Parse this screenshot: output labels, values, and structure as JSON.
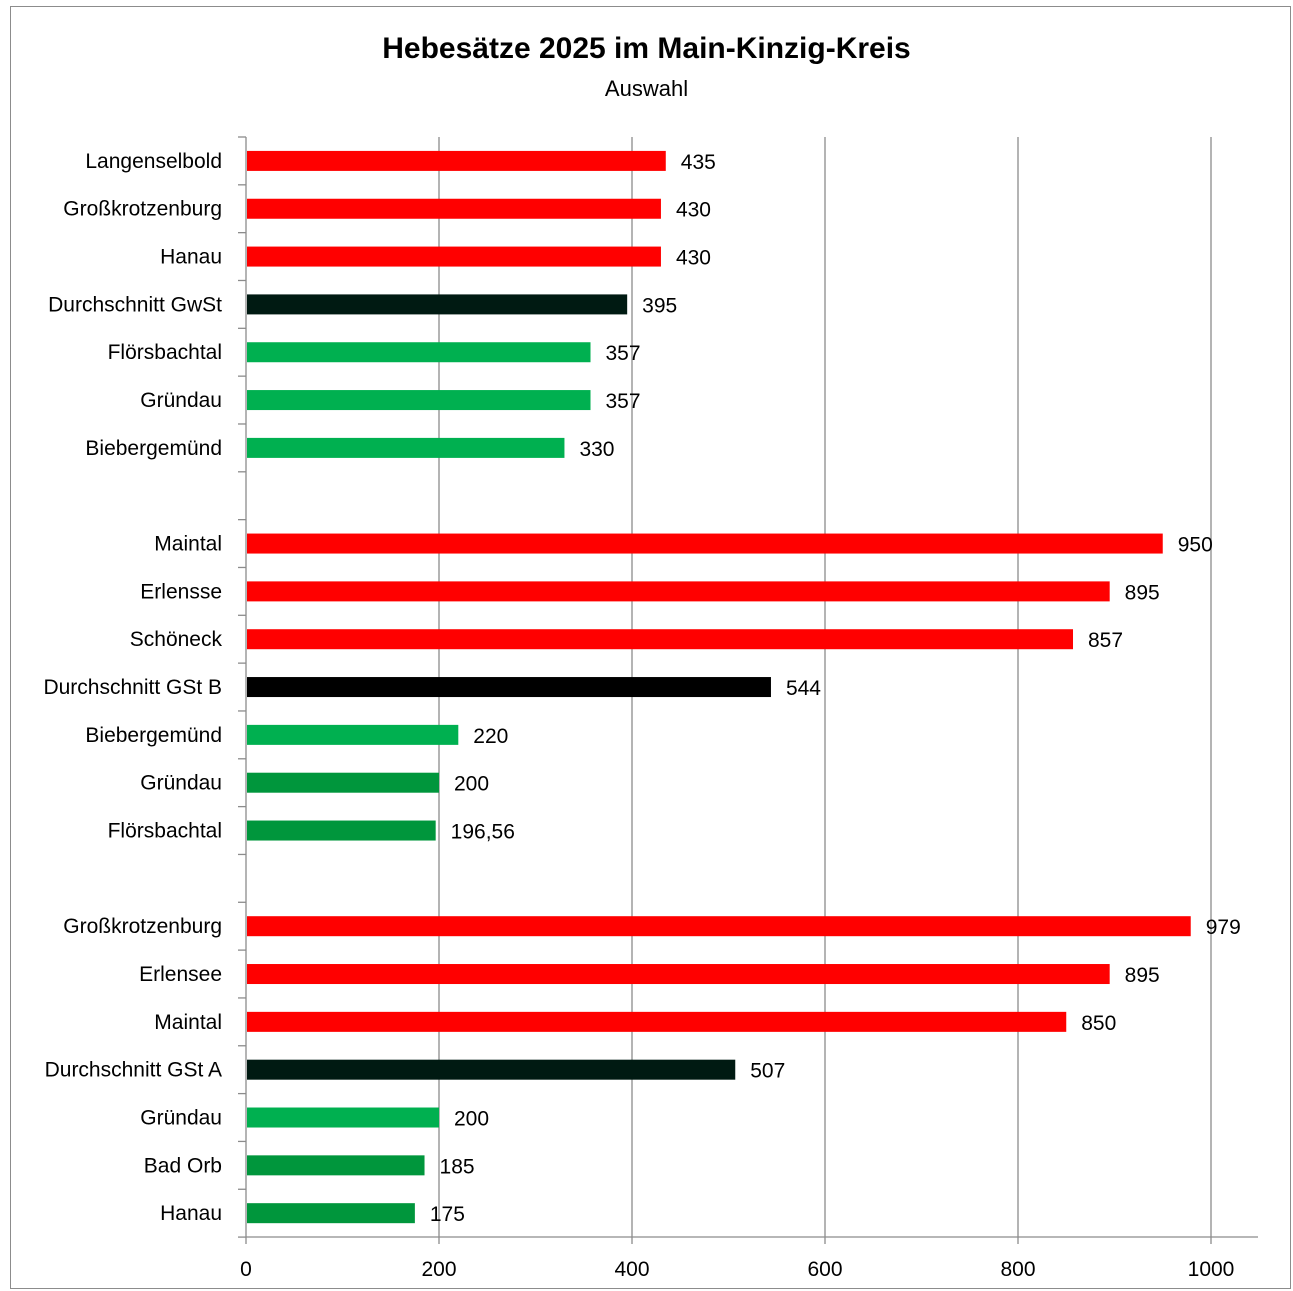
{
  "chart_data": {
    "type": "bar",
    "orientation": "horizontal",
    "title": "Hebesätze 2025 im Main-Kinzig-Kreis",
    "subtitle": "Auswahl",
    "xlim": [
      0,
      1000
    ],
    "x_ticks": [
      "0",
      "200",
      "400",
      "600",
      "800",
      "1000"
    ],
    "grid": "vertical",
    "legend": "none",
    "colors": {
      "red": "#ff0000",
      "black_a": "#000000",
      "black_b": "#001a12",
      "green_light": "#00b050",
      "green_dark": "#00963c"
    },
    "bars": [
      {
        "category": "Langenselbold",
        "value": 435,
        "label": "435",
        "color": "red"
      },
      {
        "category": "Großkrotzenburg",
        "value": 430,
        "label": "430",
        "color": "red"
      },
      {
        "category": "Hanau",
        "value": 430,
        "label": "430",
        "color": "red"
      },
      {
        "category": "Durchschnitt GwSt",
        "value": 395,
        "label": "395",
        "color": "black_b"
      },
      {
        "category": "Flörsbachtal",
        "value": 357,
        "label": "357",
        "color": "green_light"
      },
      {
        "category": "Gründau",
        "value": 357,
        "label": "357",
        "color": "green_light"
      },
      {
        "category": "Biebergemünd",
        "value": 330,
        "label": "330",
        "color": "green_light"
      },
      {
        "category": "",
        "value": null,
        "label": "",
        "color": "red"
      },
      {
        "category": "Maintal",
        "value": 950,
        "label": "950",
        "color": "red"
      },
      {
        "category": "Erlensse",
        "value": 895,
        "label": "895",
        "color": "red"
      },
      {
        "category": "Schöneck",
        "value": 857,
        "label": "857",
        "color": "red"
      },
      {
        "category": "Durchschnitt GSt B",
        "value": 544,
        "label": "544",
        "color": "black_a"
      },
      {
        "category": "Biebergemünd",
        "value": 220,
        "label": "220",
        "color": "green_light"
      },
      {
        "category": "Gründau",
        "value": 200,
        "label": "200",
        "color": "green_dark"
      },
      {
        "category": "Flörsbachtal",
        "value": 196.56,
        "label": "196,56",
        "color": "green_dark"
      },
      {
        "category": "",
        "value": null,
        "label": "",
        "color": "red"
      },
      {
        "category": "Großkrotzenburg",
        "value": 979,
        "label": "979",
        "color": "red"
      },
      {
        "category": "Erlensee",
        "value": 895,
        "label": "895",
        "color": "red"
      },
      {
        "category": "Maintal",
        "value": 850,
        "label": "850",
        "color": "red"
      },
      {
        "category": "Durchschnitt GSt A",
        "value": 507,
        "label": "507",
        "color": "black_b"
      },
      {
        "category": "Gründau",
        "value": 200,
        "label": "200",
        "color": "green_light"
      },
      {
        "category": "Bad Orb",
        "value": 185,
        "label": "185",
        "color": "green_dark"
      },
      {
        "category": "Hanau",
        "value": 175,
        "label": "175",
        "color": "green_dark"
      }
    ]
  }
}
